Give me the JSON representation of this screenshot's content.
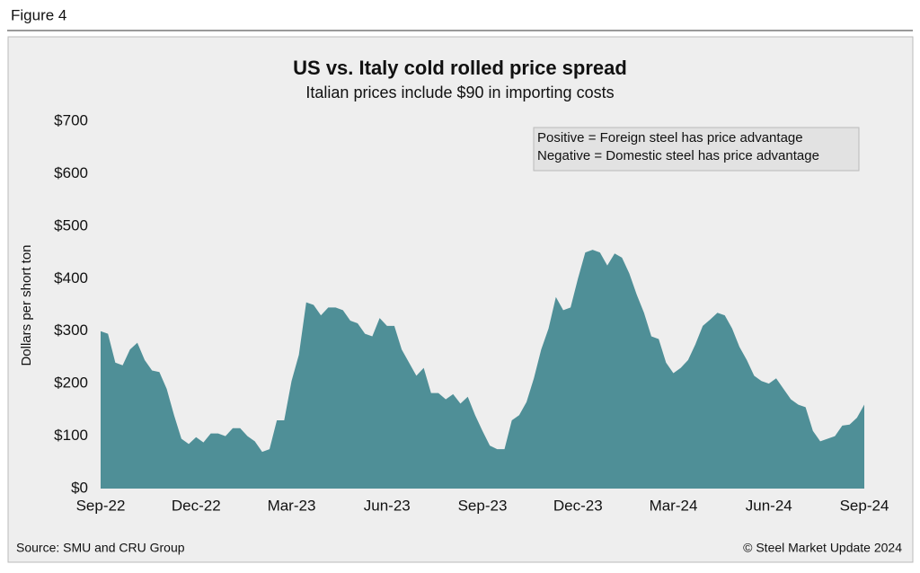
{
  "figure_label": "Figure 4",
  "chart_data": {
    "type": "area",
    "title": "US vs. Italy cold rolled price spread",
    "subtitle": "Italian prices include $90 in importing costs",
    "y_label": "Dollars per short ton",
    "annotations": [
      "Positive = Foreign steel has price advantage",
      "Negative = Domestic steel has price advantage"
    ],
    "categories": [
      "Sep-22",
      null,
      null,
      null,
      null,
      null,
      null,
      null,
      null,
      null,
      null,
      null,
      null,
      "Dec-22",
      null,
      null,
      null,
      null,
      null,
      null,
      null,
      null,
      null,
      null,
      null,
      null,
      "Mar-23",
      null,
      null,
      null,
      null,
      null,
      null,
      null,
      null,
      null,
      null,
      null,
      null,
      "Jun-23",
      null,
      null,
      null,
      null,
      null,
      null,
      null,
      null,
      null,
      null,
      null,
      null,
      "Sep-23",
      null,
      null,
      null,
      null,
      null,
      null,
      null,
      null,
      null,
      null,
      null,
      null,
      "Dec-23",
      null,
      null,
      null,
      null,
      null,
      null,
      null,
      null,
      null,
      null,
      null,
      null,
      "Mar-24",
      null,
      null,
      null,
      null,
      null,
      null,
      null,
      null,
      null,
      null,
      null,
      null,
      "Jun-24",
      null,
      null,
      null,
      null,
      null,
      null,
      null,
      null,
      null,
      null,
      null,
      null,
      "Sep-24"
    ],
    "values": [
      300,
      295,
      240,
      235,
      265,
      278,
      245,
      225,
      222,
      190,
      140,
      95,
      85,
      98,
      88,
      105,
      105,
      100,
      115,
      115,
      100,
      90,
      70,
      75,
      130,
      130,
      205,
      255,
      355,
      350,
      330,
      345,
      345,
      340,
      320,
      315,
      295,
      290,
      325,
      310,
      310,
      265,
      240,
      215,
      230,
      182,
      182,
      170,
      180,
      162,
      175,
      140,
      110,
      82,
      75,
      75,
      130,
      140,
      165,
      210,
      265,
      305,
      365,
      340,
      345,
      400,
      450,
      455,
      450,
      425,
      448,
      440,
      410,
      370,
      335,
      290,
      285,
      240,
      220,
      230,
      245,
      275,
      310,
      322,
      335,
      330,
      305,
      270,
      245,
      215,
      205,
      200,
      210,
      190,
      170,
      160,
      155,
      110,
      90,
      95,
      100,
      120,
      122,
      135,
      160
    ],
    "color": "#4f8f97",
    "ylim": [
      0,
      700
    ],
    "yticks": [
      {
        "value": 0,
        "label": "$0"
      },
      {
        "value": 100,
        "label": "$100"
      },
      {
        "value": 200,
        "label": "$200"
      },
      {
        "value": 300,
        "label": "$300"
      },
      {
        "value": 400,
        "label": "$400"
      },
      {
        "value": 500,
        "label": "$500"
      },
      {
        "value": 600,
        "label": "$600"
      },
      {
        "value": 700,
        "label": "$700"
      }
    ],
    "grid": false
  },
  "footer": {
    "source": "Source: SMU and CRU Group",
    "copyright": "© Steel Market Update 2024"
  }
}
